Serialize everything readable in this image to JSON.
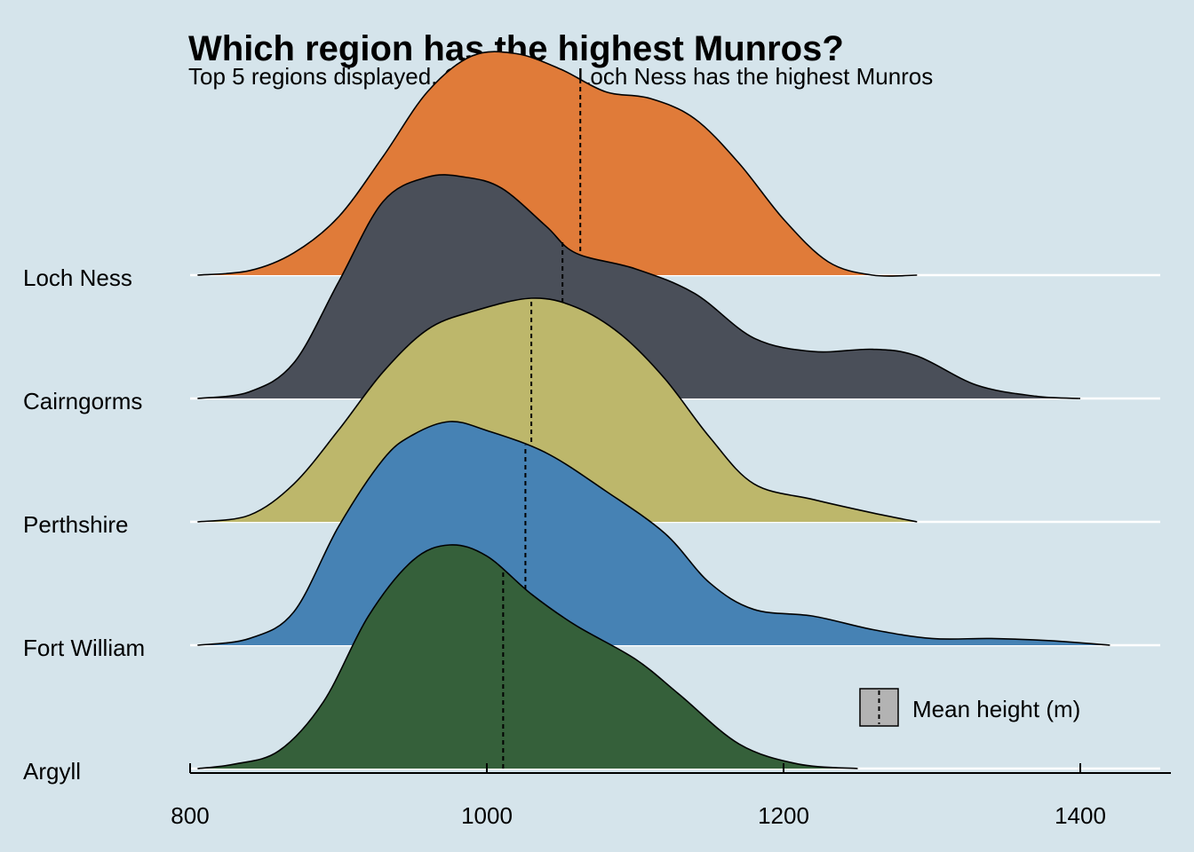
{
  "chart_data": {
    "type": "ridgeline",
    "title": "Which region has the highest Munros?",
    "subtitle": "Top 5 regions displayed. On average, Loch Ness has the highest Munros",
    "xlabel": "",
    "ylabel": "",
    "xlim": [
      800,
      1450
    ],
    "x_ticks": [
      800,
      1000,
      1200,
      1400
    ],
    "grid": false,
    "legend": {
      "label": "Mean height (m)",
      "placement": "bottom-right"
    },
    "categories": [
      "Argyll",
      "Fort William",
      "Perthshire",
      "Cairngorms",
      "Loch Ness"
    ],
    "series": [
      {
        "name": "Argyll",
        "color": "#35603a",
        "mean": 1011,
        "x": [
          805,
          830,
          860,
          890,
          920,
          950,
          975,
          1000,
          1030,
          1060,
          1100,
          1130,
          1170,
          1210,
          1250
        ],
        "density": [
          0.0,
          0.02,
          0.08,
          0.3,
          0.68,
          0.93,
          1.0,
          0.95,
          0.78,
          0.64,
          0.49,
          0.33,
          0.11,
          0.02,
          0.0
        ]
      },
      {
        "name": "Fort William",
        "color": "#4682b4",
        "mean": 1026,
        "x": [
          805,
          840,
          870,
          900,
          930,
          950,
          975,
          1000,
          1040,
          1080,
          1120,
          1150,
          1180,
          1220,
          1260,
          1300,
          1340,
          1380,
          1420
        ],
        "density": [
          0.0,
          0.03,
          0.15,
          0.53,
          0.83,
          0.94,
          1.0,
          0.96,
          0.86,
          0.69,
          0.5,
          0.28,
          0.16,
          0.13,
          0.07,
          0.03,
          0.03,
          0.02,
          0.0
        ]
      },
      {
        "name": "Perthshire",
        "color": "#bdb76b",
        "mean": 1030,
        "x": [
          805,
          840,
          870,
          900,
          930,
          960,
          990,
          1030,
          1060,
          1090,
          1120,
          1150,
          1180,
          1220,
          1260,
          1290
        ],
        "density": [
          0.0,
          0.03,
          0.17,
          0.41,
          0.67,
          0.86,
          0.94,
          1.0,
          0.96,
          0.84,
          0.64,
          0.38,
          0.17,
          0.1,
          0.04,
          0.0
        ]
      },
      {
        "name": "Cairngorms",
        "color": "#4a4f59",
        "mean": 1051,
        "x": [
          805,
          840,
          870,
          900,
          930,
          960,
          985,
          1010,
          1040,
          1060,
          1100,
          1140,
          1180,
          1220,
          1260,
          1290,
          1330,
          1370,
          1400
        ],
        "density": [
          0.0,
          0.03,
          0.16,
          0.52,
          0.88,
          0.99,
          0.99,
          0.94,
          0.77,
          0.65,
          0.58,
          0.47,
          0.27,
          0.21,
          0.22,
          0.19,
          0.06,
          0.01,
          0.0
        ]
      },
      {
        "name": "Loch Ness",
        "color": "#e07b39",
        "mean": 1063,
        "x": [
          805,
          840,
          870,
          900,
          930,
          960,
          990,
          1020,
          1050,
          1080,
          1110,
          1140,
          1170,
          1200,
          1230,
          1260,
          1290
        ],
        "density": [
          0.0,
          0.02,
          0.1,
          0.26,
          0.53,
          0.82,
          0.98,
          0.99,
          0.92,
          0.82,
          0.79,
          0.7,
          0.5,
          0.25,
          0.06,
          0.0,
          0.0
        ]
      }
    ]
  }
}
